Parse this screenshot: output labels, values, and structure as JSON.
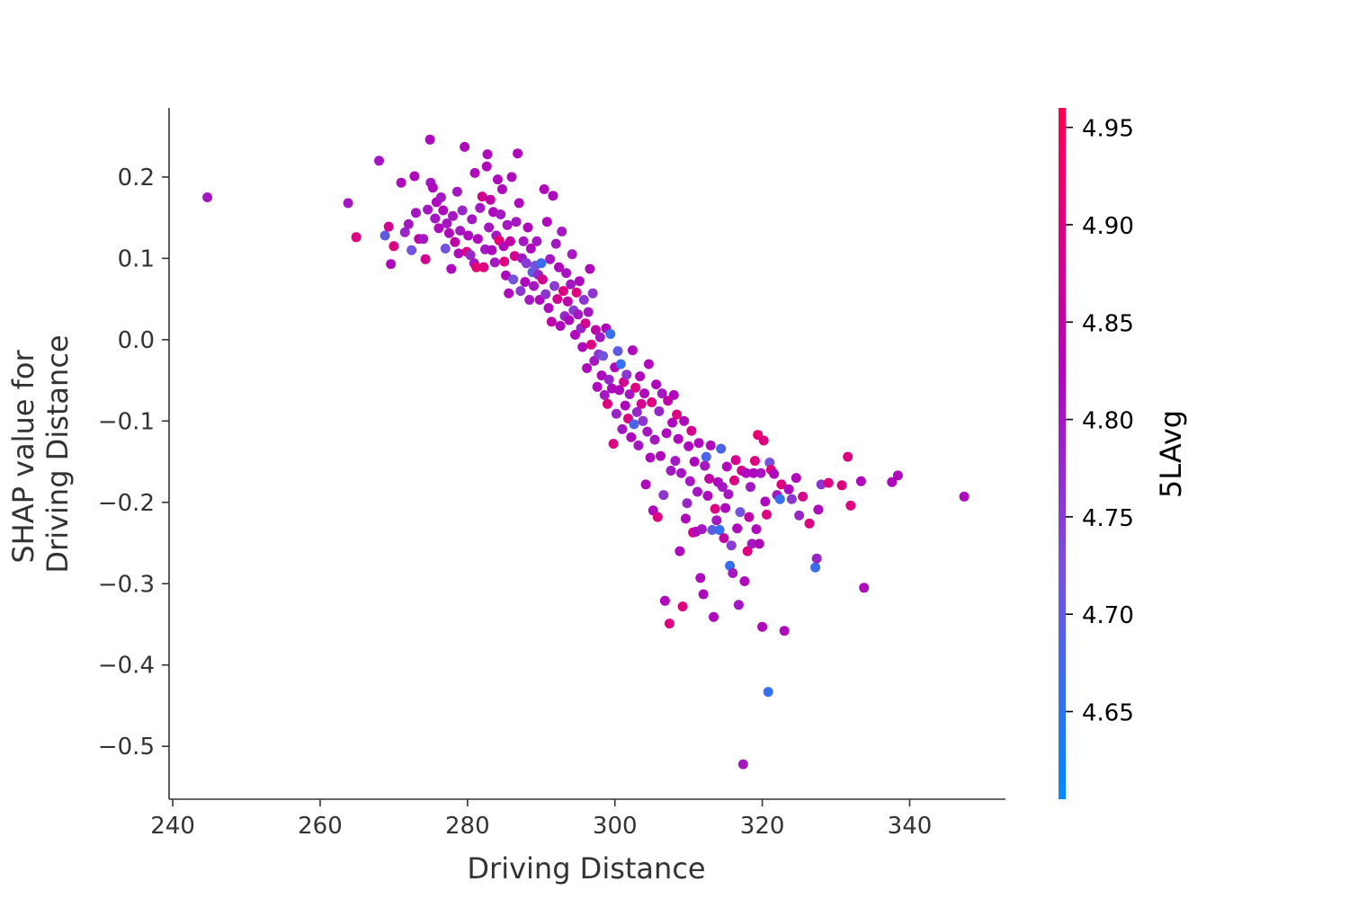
{
  "chart_data": {
    "type": "scatter",
    "title": "",
    "xlabel": "Driving Distance",
    "ylabel_line1": "SHAP value for",
    "ylabel_line2": "Driving Distance",
    "xlim": [
      239.5,
      353
    ],
    "ylim": [
      -0.565,
      0.285
    ],
    "xticks": [
      240,
      260,
      280,
      300,
      320,
      340
    ],
    "yticks": [
      0.2,
      0.1,
      0.0,
      -0.1,
      -0.2,
      -0.3,
      -0.4,
      -0.5
    ],
    "ytick_labels": [
      "0.2",
      "0.1",
      "0.0",
      "−0.1",
      "−0.2",
      "−0.3",
      "−0.4",
      "−0.5"
    ],
    "grid": false,
    "colorbar": {
      "label": "5LAvg",
      "range": [
        4.605,
        4.96
      ],
      "ticks": [
        4.65,
        4.7,
        4.75,
        4.8,
        4.85,
        4.9,
        4.95
      ],
      "tick_labels": [
        "4.65",
        "4.70",
        "4.75",
        "4.80",
        "4.85",
        "4.90",
        "4.95"
      ],
      "colors": [
        "#008afb",
        "#7c4dd9",
        "#b105b9",
        "#ff0052"
      ]
    },
    "points": [
      [
        244.7,
        0.175,
        4.8
      ],
      [
        263.8,
        0.168,
        4.8
      ],
      [
        264.9,
        0.126,
        4.9
      ],
      [
        268.0,
        0.22,
        4.8
      ],
      [
        268.8,
        0.128,
        4.7
      ],
      [
        269.3,
        0.139,
        4.88
      ],
      [
        269.6,
        0.093,
        4.82
      ],
      [
        270.0,
        0.115,
        4.9
      ],
      [
        271.0,
        0.193,
        4.82
      ],
      [
        271.5,
        0.132,
        4.78
      ],
      [
        272.0,
        0.142,
        4.8
      ],
      [
        272.4,
        0.11,
        4.72
      ],
      [
        272.8,
        0.201,
        4.82
      ],
      [
        273.0,
        0.156,
        4.8
      ],
      [
        273.4,
        0.124,
        4.85
      ],
      [
        274.0,
        0.124,
        4.8
      ],
      [
        274.3,
        0.099,
        4.88
      ],
      [
        274.6,
        0.16,
        4.8
      ],
      [
        274.9,
        0.246,
        4.82
      ],
      [
        275.0,
        0.193,
        4.8
      ],
      [
        275.3,
        0.187,
        4.82
      ],
      [
        275.6,
        0.149,
        4.8
      ],
      [
        275.8,
        0.169,
        4.82
      ],
      [
        276.1,
        0.137,
        4.82
      ],
      [
        276.4,
        0.175,
        4.8
      ],
      [
        276.7,
        0.159,
        4.82
      ],
      [
        277.0,
        0.112,
        4.72
      ],
      [
        277.2,
        0.143,
        4.8
      ],
      [
        277.5,
        0.131,
        4.82
      ],
      [
        277.8,
        0.087,
        4.82
      ],
      [
        278.0,
        0.152,
        4.8
      ],
      [
        278.3,
        0.12,
        4.85
      ],
      [
        278.6,
        0.182,
        4.8
      ],
      [
        278.8,
        0.106,
        4.82
      ],
      [
        279.0,
        0.134,
        4.8
      ],
      [
        279.3,
        0.159,
        4.78
      ],
      [
        279.6,
        0.237,
        4.82
      ],
      [
        279.9,
        0.108,
        4.9
      ],
      [
        280.1,
        0.128,
        4.82
      ],
      [
        280.4,
        0.104,
        4.78
      ],
      [
        280.6,
        0.148,
        4.8
      ],
      [
        280.9,
        0.094,
        4.8
      ],
      [
        281.0,
        0.205,
        4.82
      ],
      [
        281.2,
        0.089,
        4.92
      ],
      [
        281.4,
        0.124,
        4.82
      ],
      [
        281.7,
        0.162,
        4.8
      ],
      [
        282.0,
        0.176,
        4.88
      ],
      [
        282.2,
        0.089,
        4.9
      ],
      [
        282.4,
        0.111,
        4.8
      ],
      [
        282.6,
        0.213,
        4.82
      ],
      [
        282.7,
        0.228,
        4.82
      ],
      [
        282.9,
        0.138,
        4.8
      ],
      [
        283.1,
        0.172,
        4.85
      ],
      [
        283.3,
        0.11,
        4.82
      ],
      [
        283.5,
        0.157,
        4.82
      ],
      [
        283.7,
        0.095,
        4.8
      ],
      [
        283.9,
        0.128,
        4.8
      ],
      [
        284.1,
        0.197,
        4.82
      ],
      [
        284.3,
        0.122,
        4.92
      ],
      [
        284.5,
        0.154,
        4.8
      ],
      [
        284.7,
        0.185,
        4.82
      ],
      [
        284.9,
        0.115,
        4.82
      ],
      [
        285.0,
        0.096,
        4.9
      ],
      [
        285.2,
        0.079,
        4.82
      ],
      [
        285.4,
        0.141,
        4.8
      ],
      [
        285.6,
        0.057,
        4.82
      ],
      [
        285.8,
        0.121,
        4.85
      ],
      [
        286.0,
        0.2,
        4.82
      ],
      [
        286.2,
        0.074,
        4.72
      ],
      [
        286.4,
        0.103,
        4.88
      ],
      [
        286.6,
        0.145,
        4.8
      ],
      [
        286.8,
        0.229,
        4.82
      ],
      [
        287.0,
        0.168,
        4.82
      ],
      [
        287.2,
        0.06,
        4.76
      ],
      [
        287.4,
        0.1,
        4.8
      ],
      [
        287.6,
        0.121,
        4.8
      ],
      [
        287.8,
        0.071,
        4.82
      ],
      [
        288.0,
        0.094,
        4.75
      ],
      [
        288.2,
        0.138,
        4.82
      ],
      [
        288.4,
        0.049,
        4.8
      ],
      [
        288.6,
        0.112,
        4.82
      ],
      [
        288.8,
        0.083,
        4.7
      ],
      [
        289.0,
        0.066,
        4.8
      ],
      [
        289.2,
        0.091,
        4.72
      ],
      [
        289.4,
        0.121,
        4.8
      ],
      [
        289.6,
        0.08,
        4.78
      ],
      [
        289.8,
        0.049,
        4.82
      ],
      [
        290.0,
        0.094,
        4.66
      ],
      [
        290.2,
        0.074,
        4.88
      ],
      [
        290.4,
        0.185,
        4.82
      ],
      [
        290.6,
        0.056,
        4.76
      ],
      [
        290.8,
        0.145,
        4.82
      ],
      [
        291.0,
        0.039,
        4.82
      ],
      [
        291.2,
        0.099,
        4.8
      ],
      [
        291.4,
        0.022,
        4.85
      ],
      [
        291.6,
        0.177,
        4.82
      ],
      [
        291.8,
        0.066,
        4.75
      ],
      [
        292.0,
        0.118,
        4.8
      ],
      [
        292.2,
        0.05,
        4.88
      ],
      [
        292.4,
        0.089,
        4.82
      ],
      [
        292.6,
        0.017,
        4.82
      ],
      [
        292.8,
        0.133,
        4.8
      ],
      [
        293.0,
        0.06,
        4.9
      ],
      [
        293.2,
        0.029,
        4.78
      ],
      [
        293.4,
        0.082,
        4.8
      ],
      [
        293.6,
        0.047,
        4.85
      ],
      [
        293.8,
        0.024,
        4.82
      ],
      [
        294.0,
        0.068,
        4.8
      ],
      [
        294.2,
        0.105,
        4.8
      ],
      [
        294.4,
        0.036,
        4.75
      ],
      [
        294.6,
        0.006,
        4.82
      ],
      [
        294.8,
        0.058,
        4.9
      ],
      [
        295.0,
        0.031,
        4.8
      ],
      [
        295.2,
        0.072,
        4.82
      ],
      [
        295.4,
        0.014,
        4.78
      ],
      [
        295.6,
        -0.009,
        4.82
      ],
      [
        295.8,
        0.049,
        4.76
      ],
      [
        296.0,
        0.02,
        4.88
      ],
      [
        296.2,
        -0.035,
        4.82
      ],
      [
        296.4,
        0.034,
        4.8
      ],
      [
        296.6,
        0.087,
        4.82
      ],
      [
        296.8,
        -0.006,
        4.9
      ],
      [
        297.0,
        0.057,
        4.76
      ],
      [
        297.2,
        -0.026,
        4.8
      ],
      [
        297.4,
        0.012,
        4.85
      ],
      [
        297.6,
        -0.058,
        4.82
      ],
      [
        297.8,
        -0.018,
        4.76
      ],
      [
        298.0,
        0.003,
        4.8
      ],
      [
        298.2,
        -0.044,
        4.82
      ],
      [
        298.4,
        -0.02,
        4.72
      ],
      [
        298.6,
        -0.068,
        4.8
      ],
      [
        298.8,
        0.014,
        4.82
      ],
      [
        299.0,
        -0.079,
        4.9
      ],
      [
        299.2,
        -0.049,
        4.78
      ],
      [
        299.4,
        0.007,
        4.66
      ],
      [
        299.6,
        -0.06,
        4.82
      ],
      [
        299.8,
        -0.128,
        4.9
      ],
      [
        300.0,
        -0.034,
        4.82
      ],
      [
        300.2,
        -0.091,
        4.78
      ],
      [
        300.4,
        -0.014,
        4.7
      ],
      [
        300.6,
        -0.062,
        4.82
      ],
      [
        300.8,
        -0.03,
        4.66
      ],
      [
        301.0,
        -0.11,
        4.8
      ],
      [
        301.2,
        -0.052,
        4.88
      ],
      [
        301.4,
        -0.081,
        4.82
      ],
      [
        301.6,
        -0.043,
        4.76
      ],
      [
        301.8,
        -0.097,
        4.9
      ],
      [
        302.0,
        -0.067,
        4.8
      ],
      [
        302.2,
        -0.12,
        4.82
      ],
      [
        302.4,
        -0.013,
        4.82
      ],
      [
        302.6,
        -0.104,
        4.68
      ],
      [
        302.8,
        -0.059,
        4.9
      ],
      [
        303.0,
        -0.089,
        4.78
      ],
      [
        303.2,
        -0.13,
        4.8
      ],
      [
        303.4,
        -0.045,
        4.82
      ],
      [
        303.6,
        -0.079,
        4.88
      ],
      [
        303.8,
        -0.1,
        4.76
      ],
      [
        304.0,
        -0.066,
        4.82
      ],
      [
        304.2,
        -0.178,
        4.82
      ],
      [
        304.4,
        -0.113,
        4.8
      ],
      [
        304.6,
        -0.03,
        4.82
      ],
      [
        304.8,
        -0.145,
        4.82
      ],
      [
        305.0,
        -0.077,
        4.9
      ],
      [
        305.2,
        -0.21,
        4.82
      ],
      [
        305.4,
        -0.123,
        4.8
      ],
      [
        305.6,
        -0.055,
        4.82
      ],
      [
        305.8,
        -0.218,
        4.9
      ],
      [
        306.0,
        -0.088,
        4.78
      ],
      [
        306.2,
        -0.143,
        4.82
      ],
      [
        306.4,
        -0.066,
        4.8
      ],
      [
        306.6,
        -0.191,
        4.76
      ],
      [
        306.8,
        -0.321,
        4.82
      ],
      [
        307.0,
        -0.115,
        4.82
      ],
      [
        307.2,
        -0.075,
        4.85
      ],
      [
        307.4,
        -0.349,
        4.9
      ],
      [
        307.6,
        -0.161,
        4.8
      ],
      [
        307.8,
        -0.102,
        4.82
      ],
      [
        308.0,
        -0.068,
        4.82
      ],
      [
        308.2,
        -0.149,
        4.8
      ],
      [
        308.4,
        -0.092,
        4.9
      ],
      [
        308.6,
        -0.122,
        4.82
      ],
      [
        308.8,
        -0.26,
        4.82
      ],
      [
        309.0,
        -0.164,
        4.8
      ],
      [
        309.2,
        -0.328,
        4.9
      ],
      [
        309.4,
        -0.1,
        4.82
      ],
      [
        309.6,
        -0.22,
        4.82
      ],
      [
        309.8,
        -0.201,
        4.78
      ],
      [
        310.0,
        -0.131,
        4.82
      ],
      [
        310.2,
        -0.174,
        4.8
      ],
      [
        310.4,
        -0.112,
        4.88
      ],
      [
        310.6,
        -0.237,
        4.9
      ],
      [
        310.8,
        -0.15,
        4.82
      ],
      [
        311.0,
        -0.236,
        4.82
      ],
      [
        311.2,
        -0.187,
        4.8
      ],
      [
        311.4,
        -0.127,
        4.82
      ],
      [
        311.6,
        -0.293,
        4.82
      ],
      [
        311.8,
        -0.233,
        4.8
      ],
      [
        312.0,
        -0.313,
        4.82
      ],
      [
        312.2,
        -0.155,
        4.8
      ],
      [
        312.4,
        -0.144,
        4.68
      ],
      [
        312.6,
        -0.192,
        4.82
      ],
      [
        312.8,
        -0.171,
        4.85
      ],
      [
        313.0,
        -0.13,
        4.82
      ],
      [
        313.2,
        -0.234,
        4.7
      ],
      [
        313.4,
        -0.341,
        4.82
      ],
      [
        313.6,
        -0.208,
        4.9
      ],
      [
        313.8,
        -0.222,
        4.8
      ],
      [
        314.0,
        -0.175,
        4.82
      ],
      [
        314.2,
        -0.234,
        4.66
      ],
      [
        314.4,
        -0.134,
        4.68
      ],
      [
        314.6,
        -0.181,
        4.8
      ],
      [
        314.8,
        -0.244,
        4.85
      ],
      [
        315.0,
        -0.207,
        4.82
      ],
      [
        315.2,
        -0.156,
        4.82
      ],
      [
        315.4,
        -0.19,
        4.8
      ],
      [
        315.6,
        -0.278,
        4.66
      ],
      [
        315.8,
        -0.253,
        4.75
      ],
      [
        316.0,
        -0.287,
        4.8
      ],
      [
        316.2,
        -0.173,
        4.9
      ],
      [
        316.4,
        -0.148,
        4.88
      ],
      [
        316.6,
        -0.232,
        4.82
      ],
      [
        316.8,
        -0.326,
        4.8
      ],
      [
        317.0,
        -0.212,
        4.72
      ],
      [
        317.2,
        -0.161,
        4.88
      ],
      [
        317.4,
        -0.522,
        4.8
      ],
      [
        317.6,
        -0.297,
        4.82
      ],
      [
        317.8,
        -0.164,
        4.82
      ],
      [
        318.0,
        -0.26,
        4.9
      ],
      [
        318.2,
        -0.218,
        4.85
      ],
      [
        318.4,
        -0.181,
        4.8
      ],
      [
        318.6,
        -0.251,
        4.8
      ],
      [
        318.8,
        -0.164,
        4.82
      ],
      [
        319.0,
        -0.149,
        4.9
      ],
      [
        319.2,
        -0.233,
        4.82
      ],
      [
        319.4,
        -0.117,
        4.92
      ],
      [
        319.6,
        -0.251,
        4.82
      ],
      [
        319.8,
        -0.164,
        4.8
      ],
      [
        320.0,
        -0.353,
        4.82
      ],
      [
        320.2,
        -0.124,
        4.9
      ],
      [
        320.4,
        -0.199,
        4.82
      ],
      [
        320.6,
        -0.215,
        4.9
      ],
      [
        320.8,
        -0.433,
        4.66
      ],
      [
        321.0,
        -0.151,
        4.72
      ],
      [
        321.2,
        -0.16,
        4.9
      ],
      [
        321.6,
        -0.165,
        4.82
      ],
      [
        322.0,
        -0.191,
        4.8
      ],
      [
        322.4,
        -0.196,
        4.66
      ],
      [
        322.6,
        -0.178,
        4.9
      ],
      [
        323.0,
        -0.358,
        4.82
      ],
      [
        323.6,
        -0.184,
        4.82
      ],
      [
        324.0,
        -0.196,
        4.76
      ],
      [
        324.6,
        -0.17,
        4.82
      ],
      [
        325.0,
        -0.216,
        4.78
      ],
      [
        325.5,
        -0.193,
        4.88
      ],
      [
        326.4,
        -0.226,
        4.9
      ],
      [
        327.2,
        -0.28,
        4.66
      ],
      [
        327.4,
        -0.269,
        4.78
      ],
      [
        327.6,
        -0.209,
        4.82
      ],
      [
        328.0,
        -0.178,
        4.76
      ],
      [
        329.0,
        -0.176,
        4.9
      ],
      [
        330.8,
        -0.179,
        4.9
      ],
      [
        331.6,
        -0.144,
        4.9
      ],
      [
        332.0,
        -0.204,
        4.9
      ],
      [
        333.4,
        -0.174,
        4.82
      ],
      [
        333.8,
        -0.305,
        4.82
      ],
      [
        337.6,
        -0.175,
        4.82
      ],
      [
        338.4,
        -0.167,
        4.82
      ],
      [
        347.4,
        -0.193,
        4.82
      ]
    ]
  }
}
